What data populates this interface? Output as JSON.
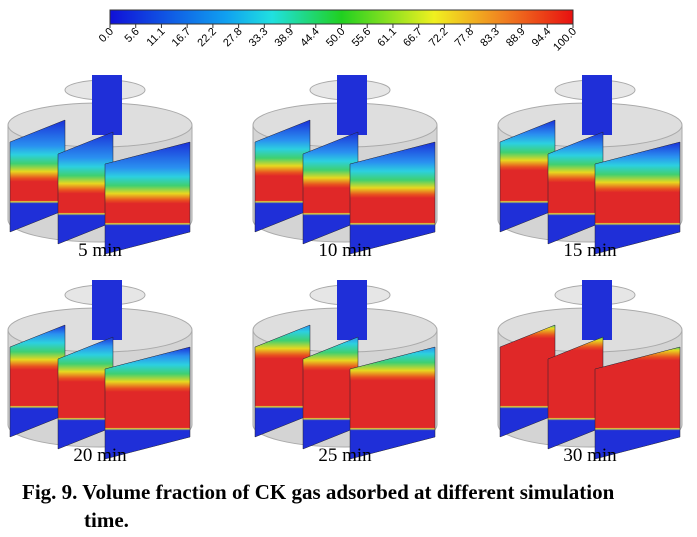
{
  "colorbar": {
    "ticks": [
      "0.0",
      "5.6",
      "11.1",
      "16.7",
      "22.2",
      "27.8",
      "33.3",
      "38.9",
      "44.4",
      "50.0",
      "55.6",
      "61.1",
      "66.7",
      "72.2",
      "77.8",
      "83.3",
      "88.9",
      "94.4",
      "100.0"
    ]
  },
  "panels": [
    {
      "label": "5 min"
    },
    {
      "label": "10 min"
    },
    {
      "label": "15 min"
    },
    {
      "label": "20 min"
    },
    {
      "label": "25 min"
    },
    {
      "label": "30 min"
    }
  ],
  "caption": {
    "lines": [
      "Fig. 9. Volume fraction of CK gas adsorbed at different simulation",
      "time."
    ]
  }
}
